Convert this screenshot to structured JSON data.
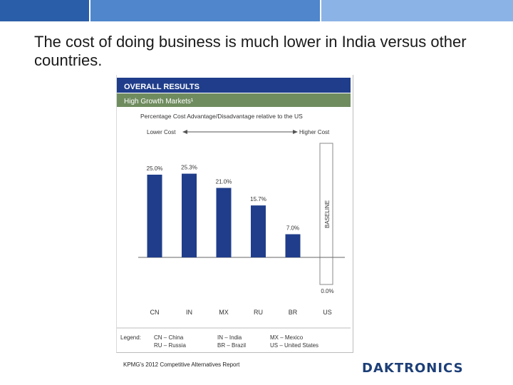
{
  "slide": {
    "title": "The cost of doing business is much lower in India versus other countries.",
    "source_note": "KPMG's 2012 Competitive Alternatives Report",
    "brand": "DAKTRONICS"
  },
  "colors": {
    "header_band": "#1f3d8a",
    "subheader_band": "#6f8c5f",
    "bar": "#1f3d8a",
    "text_dark": "#333333"
  },
  "chart_data": {
    "type": "bar",
    "title": "OVERALL RESULTS",
    "subtitle": "High Growth Markets¹",
    "ylabel": "Percentage Cost Advantage/Disadvantage relative to the US",
    "direction_left": "Lower Cost",
    "direction_right": "Higher Cost",
    "baseline_label": "BASELINE",
    "categories": [
      "CN",
      "IN",
      "MX",
      "RU",
      "BR",
      "US"
    ],
    "values": [
      25.0,
      25.3,
      21.0,
      15.7,
      7.0,
      0.0
    ],
    "value_labels": [
      "25.0%",
      "25.3%",
      "21.0%",
      "15.7%",
      "7.0%",
      "0.0%"
    ],
    "ylim": [
      0,
      30
    ],
    "legend": {
      "label": "Legend:",
      "entries": [
        "CN – China",
        "IN – India",
        "MX – Mexico",
        "RU – Russia",
        "BR – Brazil",
        "US – United States"
      ]
    }
  }
}
